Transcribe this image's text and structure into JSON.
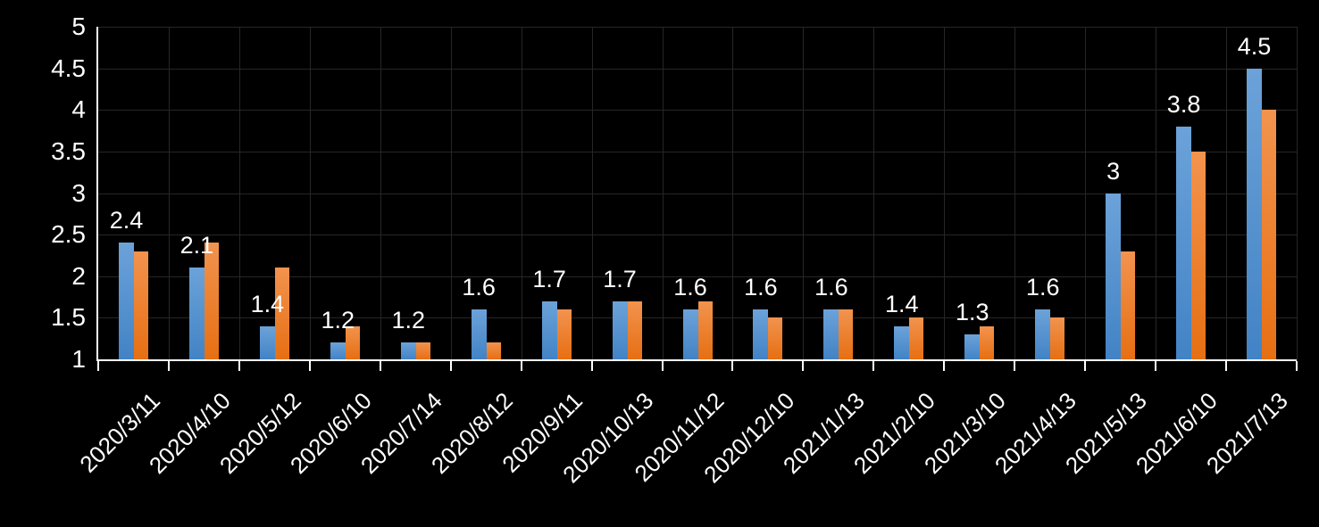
{
  "chart_data": {
    "type": "bar",
    "title": "",
    "categories": [
      "2020/3/11",
      "2020/4/10",
      "2020/5/12",
      "2020/6/10",
      "2020/7/14",
      "2020/8/12",
      "2020/9/11",
      "2020/10/13",
      "2020/11/12",
      "2020/12/10",
      "2021/1/13",
      "2021/2/10",
      "2021/3/10",
      "2021/4/13",
      "2021/5/13",
      "2021/6/10",
      "2021/7/13"
    ],
    "series": [
      {
        "name": "blue-series",
        "base_color": "#5B9BD5",
        "color_top": "#6CA2D9",
        "color_bottom": "#4283C5",
        "values": [
          2.4,
          2.1,
          1.4,
          1.2,
          1.2,
          1.6,
          1.7,
          1.7,
          1.6,
          1.6,
          1.6,
          1.4,
          1.3,
          1.6,
          3,
          3.8,
          4.5
        ]
      },
      {
        "name": "orange-series",
        "base_color": "#ED7D31",
        "color_top": "#F2934E",
        "color_bottom": "#E66F13",
        "values": [
          2.3,
          2.4,
          2.1,
          1.4,
          1.2,
          1.2,
          1.6,
          1.7,
          1.7,
          1.5,
          1.6,
          1.5,
          1.4,
          1.5,
          2.3,
          3.5,
          4.0
        ]
      }
    ],
    "data_labels": [
      "2.4",
      "2.1",
      "1.4",
      "1.2",
      "1.2",
      "1.6",
      "1.7",
      "1.7",
      "1.6",
      "1.6",
      "1.6",
      "1.4",
      "1.3",
      "1.6",
      "3",
      "3.8",
      "4.5"
    ],
    "data_labels_series": "blue-series",
    "y_ticks": [
      5,
      4.5,
      4,
      3.5,
      3,
      2.5,
      2,
      1.5,
      1
    ],
    "y_tick_labels": [
      "5",
      "4.5",
      "4",
      "3.5",
      "3",
      "2.5",
      "2",
      "1.5",
      "1"
    ],
    "ylim": [
      1,
      5
    ],
    "xlabel": "",
    "ylabel": "",
    "grid": true,
    "legend_position": "none",
    "background": "#000000",
    "text_color": "#FFFFFF",
    "gridline_color": "#262626",
    "axis_color": "#FFFFFF"
  }
}
